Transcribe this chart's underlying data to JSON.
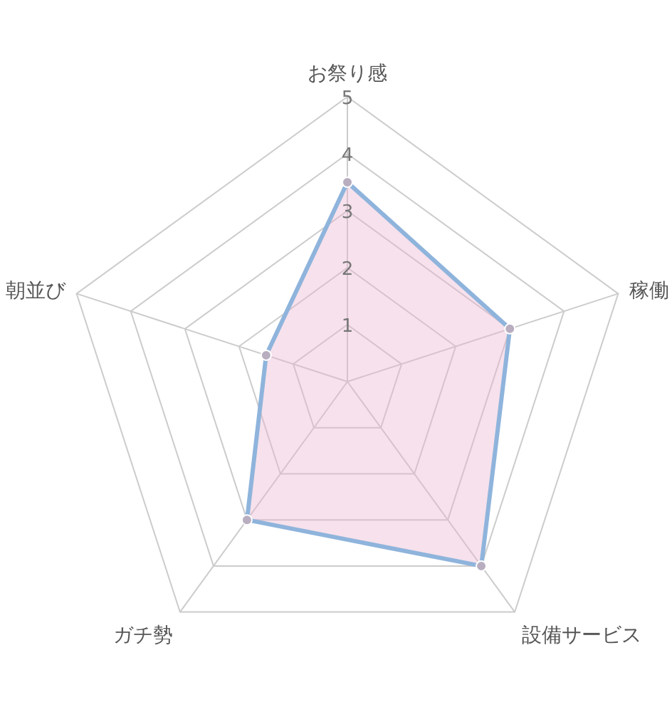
{
  "chart_data": {
    "type": "radar",
    "categories": [
      "お祭り感",
      "稼働",
      "設備サービス",
      "ガチ勢",
      "朝並び"
    ],
    "ylim": [
      0,
      5
    ],
    "yticks": [
      1,
      2,
      3,
      4,
      5
    ],
    "grid": true,
    "marker": "circle",
    "series": [
      {
        "color": "#8fb4dc",
        "values": [
          3.5,
          3,
          4,
          3,
          1.5
        ]
      }
    ]
  }
}
